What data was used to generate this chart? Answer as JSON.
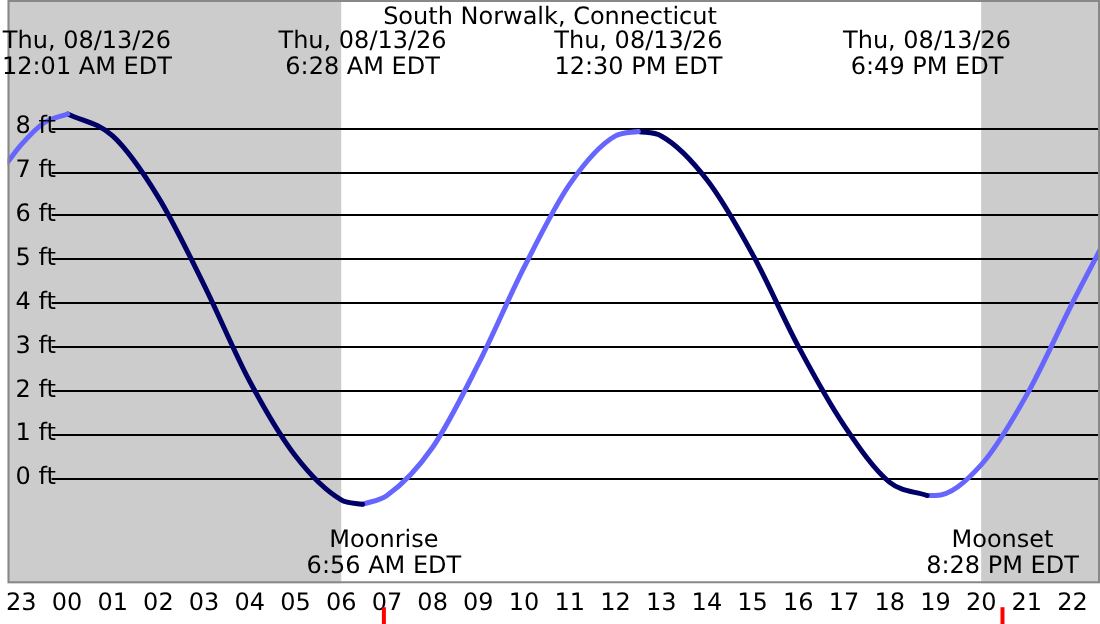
{
  "chart_data": {
    "type": "line",
    "title": "South Norwalk, Connecticut",
    "series": [
      {
        "color": "#6666ff",
        "x": [
          "--08-12T22:42",
          "--08-12T23:00",
          "--08-12T23:30",
          "--08-13T00:01"
        ],
        "values": [
          7.2,
          7.6,
          8.1,
          8.3
        ]
      },
      {
        "color": "#000066",
        "x": [
          "--08-13T00:01",
          "--08-13T01:00",
          "--08-13T02:00",
          "--08-13T03:00",
          "--08-13T04:00",
          "--08-13T05:00",
          "--08-13T06:00",
          "--08-13T06:28"
        ],
        "values": [
          8.3,
          7.8,
          6.4,
          4.4,
          2.2,
          0.5,
          -0.5,
          -0.6
        ]
      },
      {
        "color": "#6666ff",
        "x": [
          "--08-13T06:28",
          "--08-13T07:00",
          "--08-13T08:00",
          "--08-13T09:00",
          "--08-13T10:00",
          "--08-13T11:00",
          "--08-13T12:00",
          "--08-13T12:30"
        ],
        "values": [
          -0.6,
          -0.4,
          0.7,
          2.6,
          4.8,
          6.7,
          7.8,
          7.9
        ]
      },
      {
        "color": "#000066",
        "x": [
          "--08-13T12:30",
          "--08-13T13:00",
          "--08-13T14:00",
          "--08-13T15:00",
          "--08-13T16:00",
          "--08-13T17:00",
          "--08-13T18:00",
          "--08-13T18:49"
        ],
        "values": [
          7.9,
          7.8,
          6.8,
          5.1,
          3.0,
          1.2,
          -0.1,
          -0.4
        ]
      },
      {
        "color": "#6666ff",
        "x": [
          "--08-13T18:49",
          "--08-13T19:00",
          "--08-13T20:00",
          "--08-13T21:00",
          "--08-13T22:00",
          "--08-13T22:36"
        ],
        "values": [
          -0.4,
          -0.4,
          0.3,
          1.9,
          4.0,
          5.2
        ]
      }
    ],
    "xlim": [
      "--08-12T22:42",
      "--08-13T22:36"
    ],
    "xticks": [
      {
        "value": "--08-12T23:00",
        "label": "23"
      },
      {
        "value": "--08-13T00:00",
        "label": "00"
      },
      {
        "value": "--08-13T01:00",
        "label": "01"
      },
      {
        "value": "--08-13T02:00",
        "label": "02"
      },
      {
        "value": "--08-13T03:00",
        "label": "03"
      },
      {
        "value": "--08-13T04:00",
        "label": "04"
      },
      {
        "value": "--08-13T05:00",
        "label": "05"
      },
      {
        "value": "--08-13T06:00",
        "label": "06"
      },
      {
        "value": "--08-13T07:00",
        "label": "07"
      },
      {
        "value": "--08-13T08:00",
        "label": "08"
      },
      {
        "value": "--08-13T09:00",
        "label": "09"
      },
      {
        "value": "--08-13T10:00",
        "label": "10"
      },
      {
        "value": "--08-13T11:00",
        "label": "11"
      },
      {
        "value": "--08-13T12:00",
        "label": "12"
      },
      {
        "value": "--08-13T13:00",
        "label": "13"
      },
      {
        "value": "--08-13T14:00",
        "label": "14"
      },
      {
        "value": "--08-13T15:00",
        "label": "15"
      },
      {
        "value": "--08-13T16:00",
        "label": "16"
      },
      {
        "value": "--08-13T17:00",
        "label": "17"
      },
      {
        "value": "--08-13T18:00",
        "label": "18"
      },
      {
        "value": "--08-13T19:00",
        "label": "19"
      },
      {
        "value": "--08-13T20:00",
        "label": "20"
      },
      {
        "value": "--08-13T21:00",
        "label": "21"
      },
      {
        "value": "--08-13T22:00",
        "label": "22"
      }
    ],
    "ylim": [
      -2.4,
      10.9
    ],
    "yticks": [
      {
        "value": 0,
        "label": "0 ft"
      },
      {
        "value": 1,
        "label": "1 ft"
      },
      {
        "value": 2,
        "label": "2 ft"
      },
      {
        "value": 3,
        "label": "3 ft"
      },
      {
        "value": 4,
        "label": "4 ft"
      },
      {
        "value": 5,
        "label": "5 ft"
      },
      {
        "value": 6,
        "label": "6 ft"
      },
      {
        "value": 7,
        "label": "7 ft"
      },
      {
        "value": 8,
        "label": "8 ft"
      }
    ],
    "grid": "y",
    "marker": "none",
    "line_style": "solid",
    "legend": false,
    "bands": [
      {
        "axis": "x",
        "from": "--08-12T22:42",
        "to": "--08-13T06:00",
        "color": "#cccccc"
      },
      {
        "axis": "x",
        "from": "--08-13T20:00",
        "to": "--08-13T22:36",
        "color": "#cccccc"
      }
    ],
    "ref_lines": [
      {
        "axis": "x",
        "value": "--08-13T06:56",
        "label": "Moonrise\n6:56 AM EDT",
        "color": "#ff0000"
      },
      {
        "axis": "x",
        "value": "--08-13T20:28",
        "label": "Moonset\n8:28 PM EDT",
        "color": "#ff0000"
      }
    ],
    "annotations": [
      "Thu, 08/13/26\n12:01 AM EDT",
      "Thu, 08/13/26\n6:28 AM EDT",
      "Thu, 08/13/26\n12:30 PM EDT",
      "Thu, 08/13/26\n6:49 PM EDT"
    ]
  }
}
